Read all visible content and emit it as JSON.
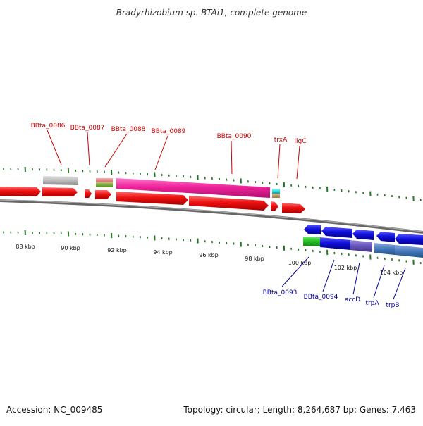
{
  "title": "Bradyrhizobium sp. BTAi1, complete genome",
  "footer": {
    "accession_label": "Accession: NC_009485",
    "stats_label": "Topology: circular; Length: 8,264,687 bp; Genes: 7,463"
  },
  "colors": {
    "red_gene": "#ee1111",
    "pink_gene": "#ee2299",
    "grey_gene": "#bbbbbb",
    "blue_gene": "#1111dd",
    "label_top": "#cc0000",
    "label_bottom": "#000099",
    "tick": "#227722",
    "backbone": "#777777"
  },
  "top_labels": [
    {
      "id": "BBta_0086",
      "text": "BBta_0086"
    },
    {
      "id": "BBta_0087",
      "text": "BBta_0087"
    },
    {
      "id": "BBta_0088",
      "text": "BBta_0088"
    },
    {
      "id": "BBta_0089",
      "text": "BBta_0089"
    },
    {
      "id": "BBta_0090",
      "text": "BBta_0090"
    },
    {
      "id": "trxA",
      "text": "trxA"
    },
    {
      "id": "ligC",
      "text": "ligC"
    }
  ],
  "bottom_labels": [
    {
      "id": "BBta_0093",
      "text": "BBta_0093"
    },
    {
      "id": "BBta_0094",
      "text": "BBta_0094"
    },
    {
      "id": "accD",
      "text": "accD"
    },
    {
      "id": "trpA",
      "text": "trpA"
    },
    {
      "id": "trpB",
      "text": "trpB"
    }
  ],
  "scale_labels": [
    "88 kbp",
    "90 kbp",
    "92 kbp",
    "94 kbp",
    "96 kbp",
    "98 kbp",
    "100 kbp",
    "102 kbp",
    "104 kbp"
  ]
}
